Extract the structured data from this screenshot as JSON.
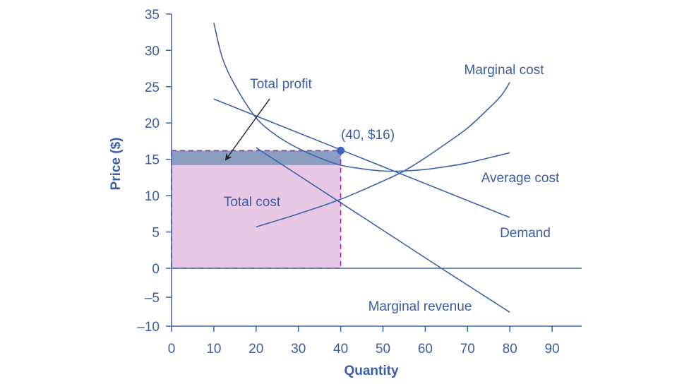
{
  "chart_data": {
    "type": "line",
    "title": "",
    "xlabel": "Quantity",
    "ylabel": "Price ($)",
    "xlim": [
      0,
      97
    ],
    "ylim": [
      -10,
      35
    ],
    "x_ticks": [
      "0",
      "10",
      "20",
      "30",
      "40",
      "50",
      "60",
      "70",
      "80",
      "90"
    ],
    "y_ticks": [
      "35",
      "30",
      "25",
      "20",
      "15",
      "10",
      "5",
      "0",
      "–5",
      "–10"
    ],
    "grid": false,
    "legend": "none",
    "colors": {
      "line": "#3a64ad",
      "text": "#3a5ea6",
      "total_cost_fill": "#e8c8e4",
      "total_profit_fill": "#8b9dc0",
      "dashed_border": "#9b30b0",
      "arrow": "#222222"
    },
    "series": [
      {
        "name": "Marginal cost",
        "points": [
          [
            20,
            5.7
          ],
          [
            30,
            7.5
          ],
          [
            40,
            9.5
          ],
          [
            50,
            12
          ],
          [
            55,
            13.4
          ],
          [
            60,
            15.2
          ],
          [
            65,
            17.2
          ],
          [
            70,
            19.3
          ],
          [
            75,
            22
          ],
          [
            78,
            23.8
          ],
          [
            80,
            25.6
          ]
        ]
      },
      {
        "name": "Average cost",
        "points": [
          [
            10,
            33.8
          ],
          [
            12,
            29
          ],
          [
            15,
            25.2
          ],
          [
            20,
            20.7
          ],
          [
            25,
            18.2
          ],
          [
            30,
            16.5
          ],
          [
            35,
            15.2
          ],
          [
            40,
            14.2
          ],
          [
            45,
            13.7
          ],
          [
            50,
            13.4
          ],
          [
            55,
            13.4
          ],
          [
            60,
            13.6
          ],
          [
            65,
            14
          ],
          [
            70,
            14.5
          ],
          [
            75,
            15.2
          ],
          [
            80,
            15.9
          ]
        ]
      },
      {
        "name": "Demand",
        "points": [
          [
            10,
            23.3
          ],
          [
            80,
            7
          ]
        ]
      },
      {
        "name": "Marginal revenue",
        "points": [
          [
            20,
            16.6
          ],
          [
            63.8,
            0
          ],
          [
            80,
            -7.6
          ]
        ]
      }
    ],
    "areas": [
      {
        "name": "Total cost",
        "x": [
          0,
          40
        ],
        "y": [
          0,
          14.2
        ]
      },
      {
        "name": "Total profit",
        "x": [
          0,
          40
        ],
        "y": [
          14.2,
          16.2
        ]
      }
    ],
    "point": {
      "label": "(40, $16)",
      "x": 40,
      "y": 16
    },
    "annotations": [
      "Total profit",
      "Total cost"
    ]
  }
}
